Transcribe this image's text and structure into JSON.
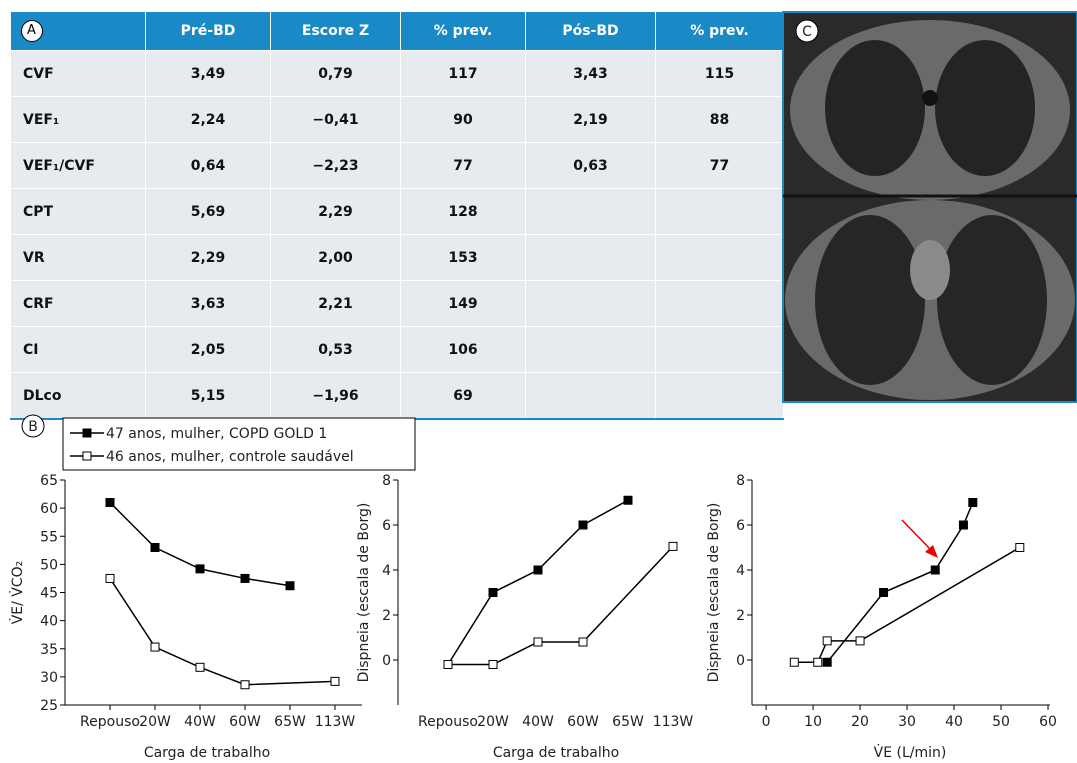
{
  "figure_labels": [
    "A",
    "B",
    "C"
  ],
  "table": {
    "header": [
      "Pré-BD",
      "Escore Z",
      "% prev.",
      "Pós-BD",
      "% prev."
    ],
    "rows": [
      [
        "CVF",
        "3,49",
        "0,79",
        "117",
        "3,43",
        "115"
      ],
      [
        "VEF₁",
        "2,24",
        "−0,41",
        "90",
        "2,19",
        "88"
      ],
      [
        "VEF₁/CVF",
        "0,64",
        "−2,23",
        "77",
        "0,63",
        "77"
      ],
      [
        "CPT",
        "5,69",
        "2,29",
        "128"
      ],
      [
        "VR",
        "2,29",
        "2,00",
        "153"
      ],
      [
        "CRF",
        "3,63",
        "2,21",
        "149"
      ],
      [
        "CI",
        "2,05",
        "0,53",
        "106"
      ],
      [
        "DLco",
        "5,15",
        "−1,96",
        "69"
      ]
    ]
  },
  "chart_data": [
    {
      "type": "line",
      "y_label": "V̇E/ V̇CO₂",
      "x_label": "Carga de trabalho",
      "categories": [
        "Repouso",
        "20W",
        "40W",
        "60W",
        "65W",
        "113W"
      ],
      "ylim": [
        25,
        65
      ],
      "yticks": [
        25,
        30,
        35,
        40,
        45,
        50,
        55,
        60,
        65
      ],
      "grid": false,
      "series": [
        {
          "name": "47 anos, mulher, COPD GOLD 1",
          "color": "#000000",
          "marker_fill": "#000000",
          "x": [
            "Repouso",
            "20W",
            "40W",
            "60W",
            "65W"
          ],
          "values": [
            61,
            53,
            49.2,
            47.5,
            46.2
          ]
        },
        {
          "name": "46 anos, mulher, controle saudável",
          "color": "#000000",
          "marker_fill": "#ffffff",
          "x": [
            "Repouso",
            "20W",
            "40W",
            "60W",
            "113W"
          ],
          "values": [
            47.5,
            35.3,
            31.7,
            28.6,
            29.2
          ]
        }
      ]
    },
    {
      "type": "line",
      "y_label": "Dispneia (escala de Borg)",
      "x_label": "Carga de trabalho",
      "categories": [
        "Repouso",
        "20W",
        "40W",
        "60W",
        "65W",
        "113W"
      ],
      "ylim": [
        -2,
        8
      ],
      "yticks": [
        0,
        2,
        4,
        6,
        8
      ],
      "grid": false,
      "series": [
        {
          "color": "#000000",
          "marker_fill": "#000000",
          "x": [
            "Repouso",
            "20W",
            "40W",
            "60W",
            "65W"
          ],
          "values": [
            -0.2,
            3,
            4,
            6,
            7.1
          ]
        },
        {
          "color": "#000000",
          "marker_fill": "#ffffff",
          "x": [
            "Repouso",
            "20W",
            "40W",
            "60W",
            "113W"
          ],
          "values": [
            -0.2,
            -0.2,
            0.8,
            0.8,
            5.05
          ]
        }
      ]
    },
    {
      "type": "scatter_line",
      "y_label": "Dispneia (escala de Borg)",
      "x_label": "V̇E (L/min)",
      "xlim": [
        -3,
        60
      ],
      "xticks": [
        0,
        10,
        20,
        30,
        40,
        50,
        60
      ],
      "ylim": [
        -2,
        8
      ],
      "yticks": [
        0,
        2,
        4,
        6,
        8
      ],
      "grid": false,
      "series": [
        {
          "color": "#000000",
          "marker_fill": "#000000",
          "x": [
            13,
            25,
            36,
            42,
            44
          ],
          "values": [
            -0.1,
            3,
            4,
            6,
            7
          ]
        },
        {
          "color": "#000000",
          "marker_fill": "#ffffff",
          "x": [
            6,
            11,
            13,
            20,
            54
          ],
          "values": [
            -0.1,
            -0.1,
            0.85,
            0.85,
            5
          ]
        }
      ]
    }
  ]
}
